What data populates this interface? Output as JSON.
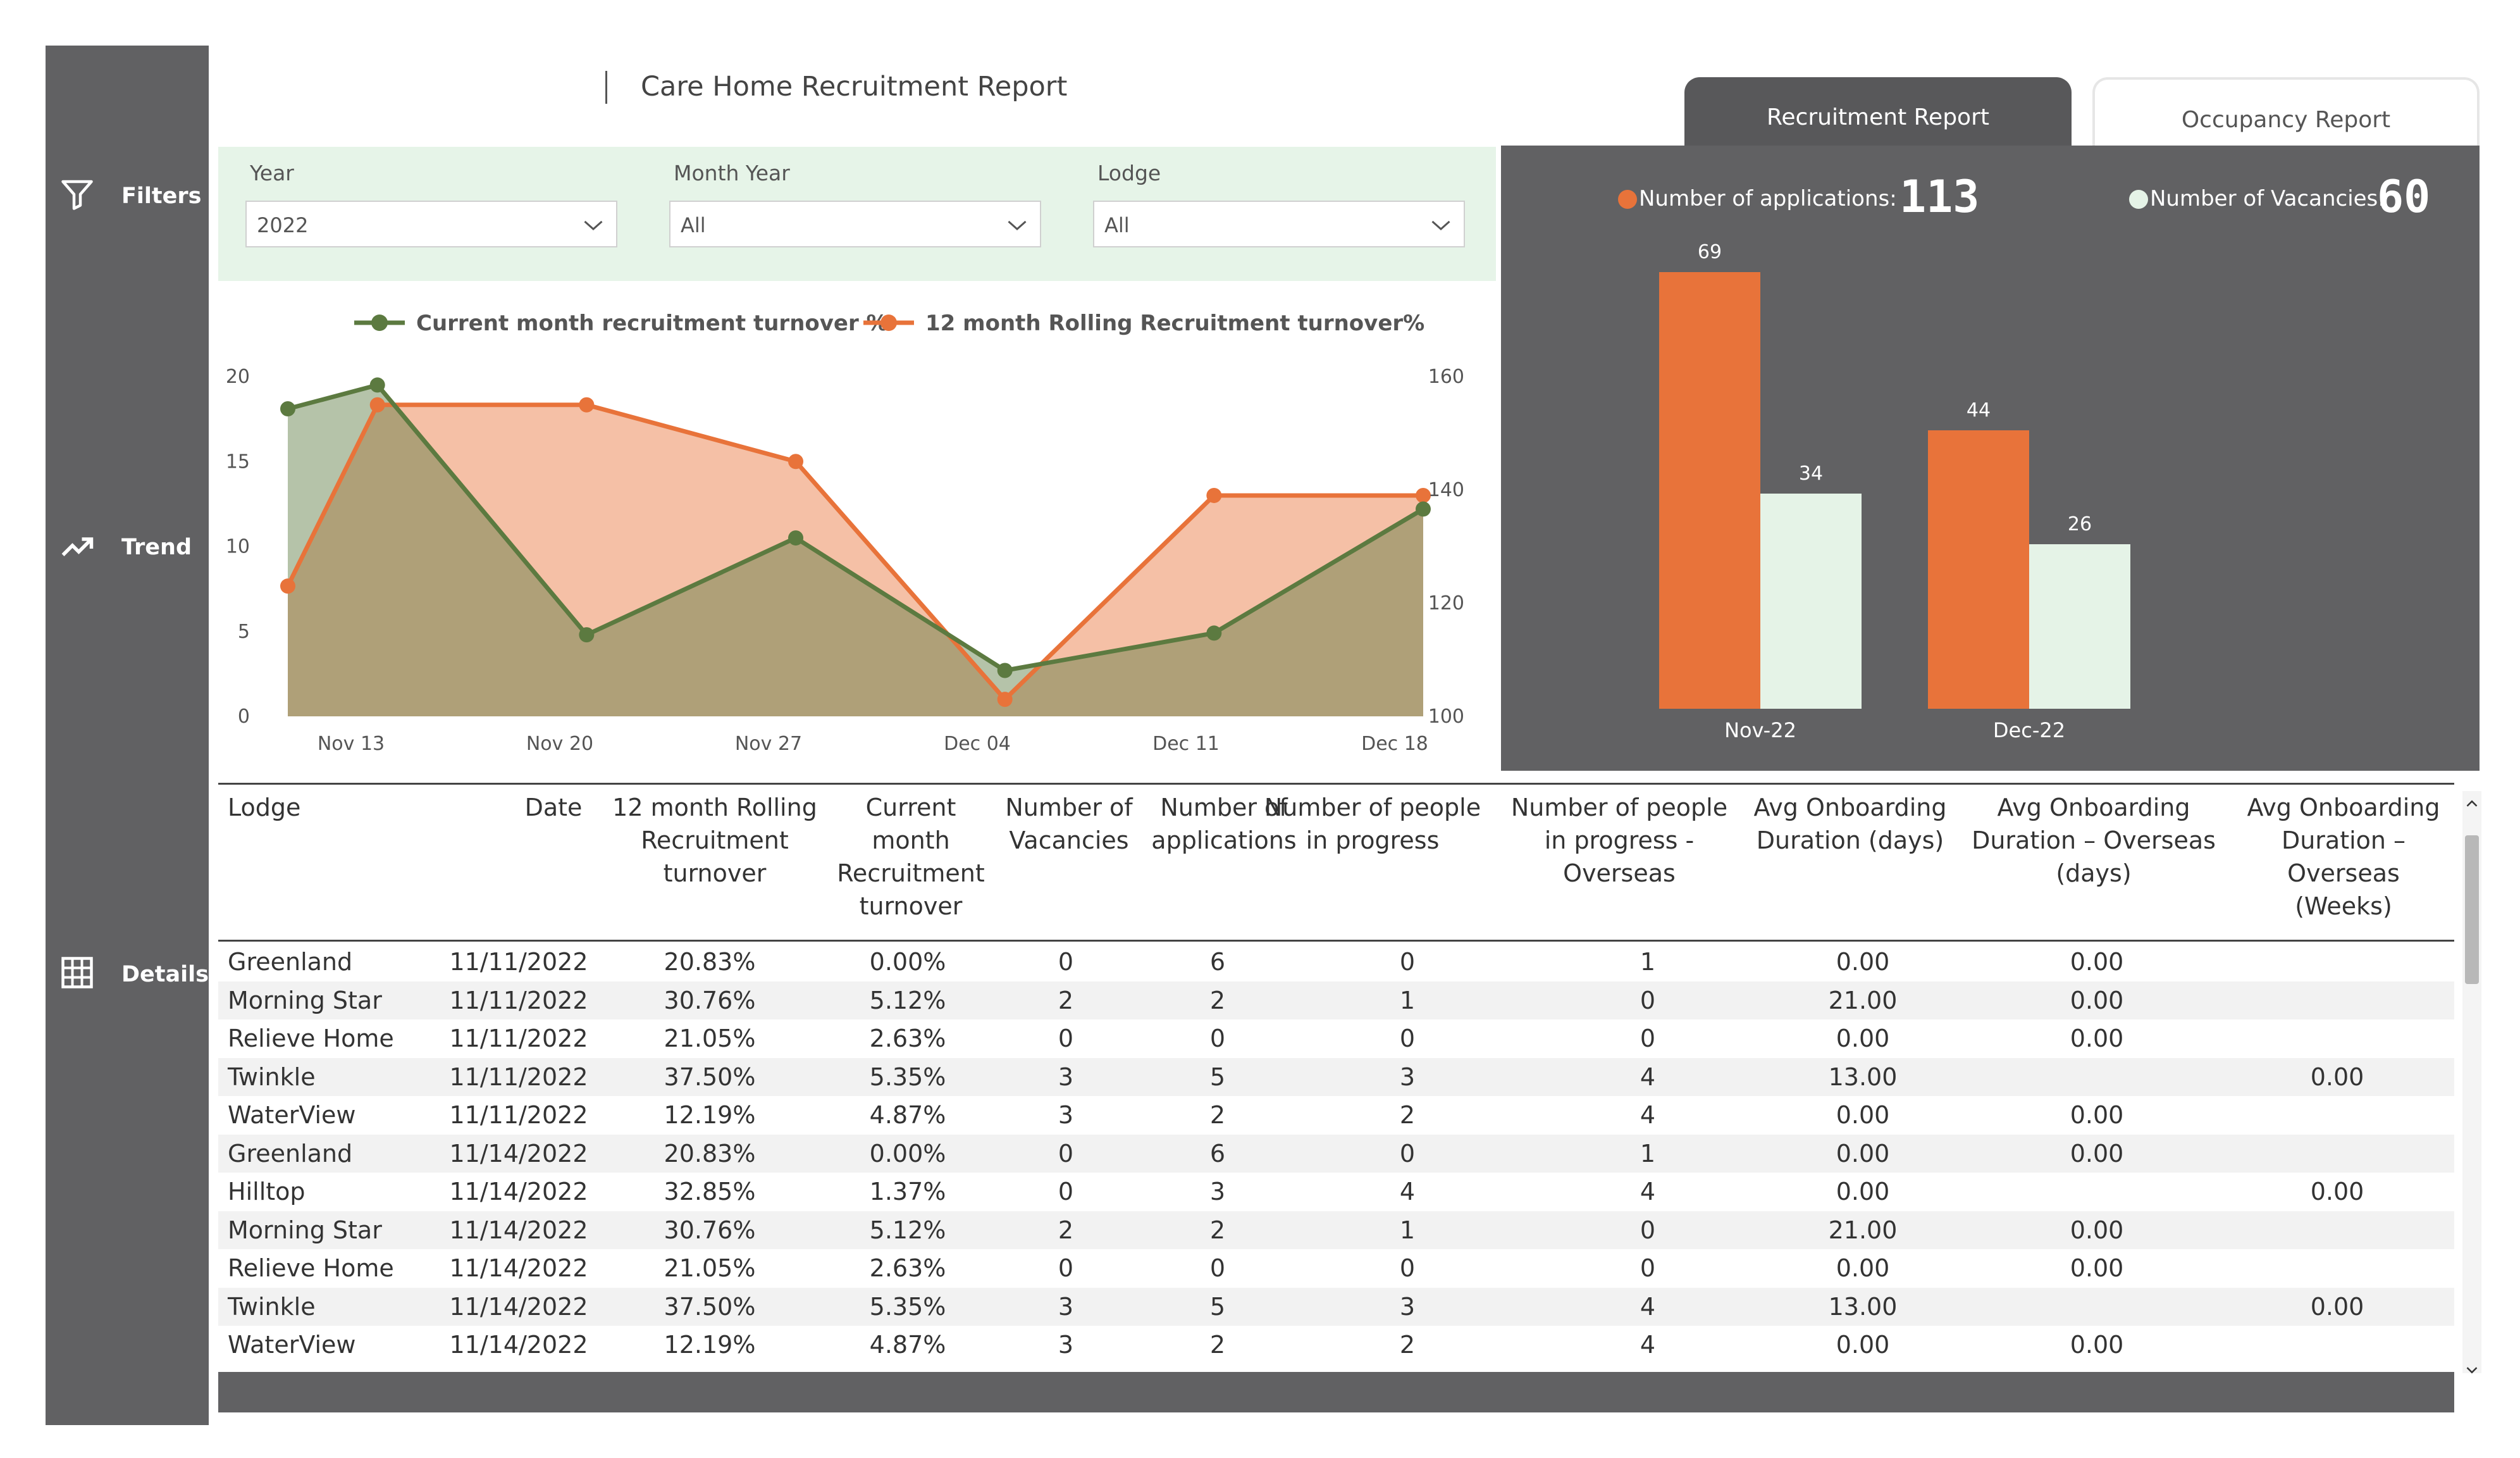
{
  "report": {
    "title": "Care Home Recruitment Report"
  },
  "tabs": {
    "recruitment": "Recruitment Report",
    "occupancy": "Occupancy Report"
  },
  "sidebar": {
    "filters": "Filters",
    "trend": "Trend",
    "details": "Details"
  },
  "filters": [
    {
      "label": "Year",
      "value": "2022"
    },
    {
      "label": "Month Year",
      "value": "All"
    },
    {
      "label": "Lodge",
      "value": "All"
    }
  ],
  "kpis": {
    "applications_label": "Number of applications:",
    "applications_value": "113",
    "vacancies_label": "Number of Vacancies:",
    "vacancies_value": "60"
  },
  "colors": {
    "orange": "#e8733a",
    "green": "#5c7a40",
    "mint": "#e5f3e7",
    "panel": "#616163"
  },
  "chart_data": [
    {
      "type": "line",
      "categories_ticks": [
        "Nov 13",
        "Nov 20",
        "Nov 27",
        "Dec 04",
        "Dec 11",
        "Dec 18"
      ],
      "x_dates": [
        "2022-11-11",
        "2022-11-14",
        "2022-11-21",
        "2022-11-28",
        "2022-12-05",
        "2022-12-12",
        "2022-12-19"
      ],
      "series": [
        {
          "name": "Current month recruitment turnover %",
          "axis": "left",
          "color": "#5c7a40",
          "values": [
            18.1,
            19.5,
            4.8,
            10.5,
            2.7,
            4.9,
            12.2
          ]
        },
        {
          "name": "12 month Rolling Recruitment turnover%",
          "axis": "right",
          "color": "#e8733a",
          "values": [
            123,
            155,
            155,
            145,
            103,
            139,
            139
          ]
        }
      ],
      "y_left": {
        "min": 0,
        "max": 20,
        "ticks": [
          "0",
          "5",
          "10",
          "15",
          "20"
        ]
      },
      "y_right": {
        "min": 100,
        "max": 160,
        "ticks": [
          "100",
          "120",
          "140",
          "160"
        ]
      },
      "legend": "top"
    },
    {
      "type": "bar",
      "categories": [
        "Nov-22",
        "Dec-22"
      ],
      "series": [
        {
          "name": "Number of applications",
          "color": "#e8733a",
          "values": [
            69,
            44
          ]
        },
        {
          "name": "Number of Vacancies",
          "color": "#e5f3e7",
          "values": [
            34,
            26
          ]
        }
      ],
      "ylim": [
        0,
        69
      ]
    }
  ],
  "table": {
    "columns": [
      [
        "Lodge"
      ],
      [
        "Date"
      ],
      [
        "12 month Rolling",
        "Recruitment",
        "turnover"
      ],
      [
        "Current",
        "month",
        "Recruitment",
        "turnover"
      ],
      [
        "Number of",
        "Vacancies"
      ],
      [
        "Number of",
        "applications"
      ],
      [
        "Number of people",
        "in progress"
      ],
      [
        "Number of people",
        "in progress -",
        "Overseas"
      ],
      [
        "Avg Onboarding",
        "Duration (days)"
      ],
      [
        "Avg Onboarding",
        "Duration – Overseas",
        "(days)"
      ],
      [
        "Avg Onboarding",
        "Duration –",
        "Overseas (Weeks)"
      ]
    ],
    "rows": [
      [
        "Greenland",
        "11/11/2022",
        "20.83%",
        "0.00%",
        "0",
        "6",
        "0",
        "1",
        "0.00",
        "0.00",
        ""
      ],
      [
        "Morning Star",
        "11/11/2022",
        "30.76%",
        "5.12%",
        "2",
        "2",
        "1",
        "0",
        "21.00",
        "0.00",
        ""
      ],
      [
        "Relieve Home",
        "11/11/2022",
        "21.05%",
        "2.63%",
        "0",
        "0",
        "0",
        "0",
        "0.00",
        "0.00",
        ""
      ],
      [
        "Twinkle",
        "11/11/2022",
        "37.50%",
        "5.35%",
        "3",
        "5",
        "3",
        "4",
        "13.00",
        "",
        "0.00"
      ],
      [
        "WaterView",
        "11/11/2022",
        "12.19%",
        "4.87%",
        "3",
        "2",
        "2",
        "4",
        "0.00",
        "0.00",
        ""
      ],
      [
        "Greenland",
        "11/14/2022",
        "20.83%",
        "0.00%",
        "0",
        "6",
        "0",
        "1",
        "0.00",
        "0.00",
        ""
      ],
      [
        "Hilltop",
        "11/14/2022",
        "32.85%",
        "1.37%",
        "0",
        "3",
        "4",
        "4",
        "0.00",
        "",
        "0.00"
      ],
      [
        "Morning Star",
        "11/14/2022",
        "30.76%",
        "5.12%",
        "2",
        "2",
        "1",
        "0",
        "21.00",
        "0.00",
        ""
      ],
      [
        "Relieve Home",
        "11/14/2022",
        "21.05%",
        "2.63%",
        "0",
        "0",
        "0",
        "0",
        "0.00",
        "0.00",
        ""
      ],
      [
        "Twinkle",
        "11/14/2022",
        "37.50%",
        "5.35%",
        "3",
        "5",
        "3",
        "4",
        "13.00",
        "",
        "0.00"
      ],
      [
        "WaterView",
        "11/14/2022",
        "12.19%",
        "4.87%",
        "3",
        "2",
        "2",
        "4",
        "0.00",
        "0.00",
        ""
      ]
    ]
  }
}
